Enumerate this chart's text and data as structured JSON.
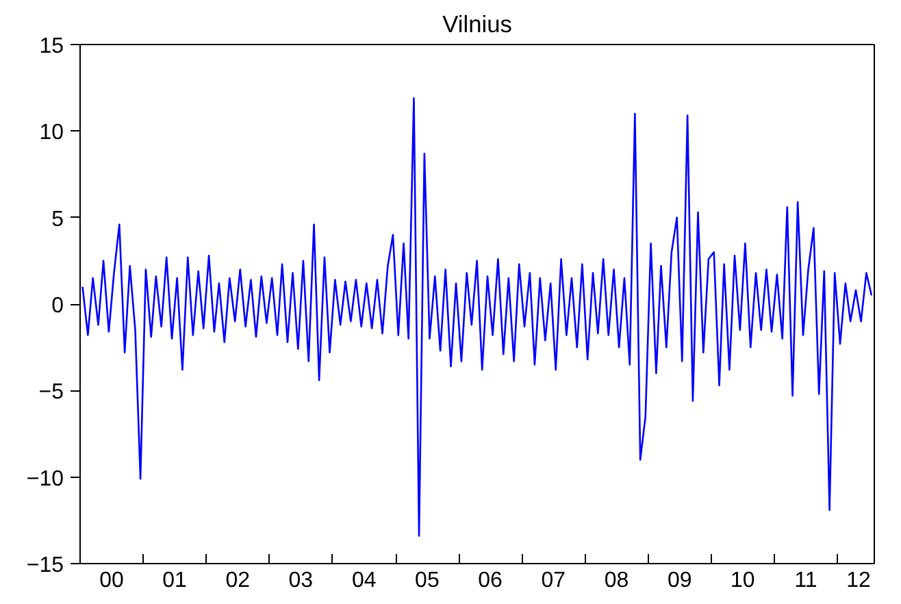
{
  "chart_data": {
    "type": "line",
    "title": "Vilnius",
    "x": [
      "2000-01",
      "2000-02",
      "2000-03",
      "2000-04",
      "2000-05",
      "2000-06",
      "2000-07",
      "2000-08",
      "2000-09",
      "2000-10",
      "2000-11",
      "2000-12",
      "2001-01",
      "2001-02",
      "2001-03",
      "2001-04",
      "2001-05",
      "2001-06",
      "2001-07",
      "2001-08",
      "2001-09",
      "2001-10",
      "2001-11",
      "2001-12",
      "2002-01",
      "2002-02",
      "2002-03",
      "2002-04",
      "2002-05",
      "2002-06",
      "2002-07",
      "2002-08",
      "2002-09",
      "2002-10",
      "2002-11",
      "2002-12",
      "2003-01",
      "2003-02",
      "2003-03",
      "2003-04",
      "2003-05",
      "2003-06",
      "2003-07",
      "2003-08",
      "2003-09",
      "2003-10",
      "2003-11",
      "2003-12",
      "2004-01",
      "2004-02",
      "2004-03",
      "2004-04",
      "2004-05",
      "2004-06",
      "2004-07",
      "2004-08",
      "2004-09",
      "2004-10",
      "2004-11",
      "2004-12",
      "2005-01",
      "2005-02",
      "2005-03",
      "2005-04",
      "2005-05",
      "2005-06",
      "2005-07",
      "2005-08",
      "2005-09",
      "2005-10",
      "2005-11",
      "2005-12",
      "2006-01",
      "2006-02",
      "2006-03",
      "2006-04",
      "2006-05",
      "2006-06",
      "2006-07",
      "2006-08",
      "2006-09",
      "2006-10",
      "2006-11",
      "2006-12",
      "2007-01",
      "2007-02",
      "2007-03",
      "2007-04",
      "2007-05",
      "2007-06",
      "2007-07",
      "2007-08",
      "2007-09",
      "2007-10",
      "2007-11",
      "2007-12",
      "2008-01",
      "2008-02",
      "2008-03",
      "2008-04",
      "2008-05",
      "2008-06",
      "2008-07",
      "2008-08",
      "2008-09",
      "2008-10",
      "2008-11",
      "2008-12",
      "2009-01",
      "2009-02",
      "2009-03",
      "2009-04",
      "2009-05",
      "2009-06",
      "2009-07",
      "2009-08",
      "2009-09",
      "2009-10",
      "2009-11",
      "2009-12",
      "2010-01",
      "2010-02",
      "2010-03",
      "2010-04",
      "2010-05",
      "2010-06",
      "2010-07",
      "2010-08",
      "2010-09",
      "2010-10",
      "2010-11",
      "2010-12",
      "2011-01",
      "2011-02",
      "2011-03",
      "2011-04",
      "2011-05",
      "2011-06",
      "2011-07",
      "2011-08",
      "2011-09",
      "2011-10",
      "2011-11",
      "2011-12",
      "2012-01",
      "2012-02",
      "2012-03",
      "2012-04",
      "2012-05",
      "2012-06",
      "2012-07"
    ],
    "series": [
      {
        "color": "#0000ff",
        "values": [
          1.0,
          -1.8,
          1.5,
          -1.2,
          2.5,
          -1.6,
          1.8,
          4.6,
          -2.8,
          2.2,
          -1.5,
          -10.1,
          2.0,
          -1.9,
          1.6,
          -1.3,
          2.7,
          -2.0,
          1.5,
          -3.8,
          2.7,
          -1.8,
          1.9,
          -1.4,
          2.8,
          -1.6,
          1.2,
          -2.2,
          1.5,
          -1.0,
          2.0,
          -1.3,
          1.4,
          -1.9,
          1.6,
          -1.1,
          1.5,
          -1.8,
          2.3,
          -2.2,
          1.8,
          -2.6,
          2.5,
          -3.3,
          4.6,
          -4.4,
          2.7,
          -2.8,
          1.4,
          -1.2,
          1.3,
          -1.0,
          1.4,
          -1.3,
          1.2,
          -1.4,
          1.4,
          -1.7,
          2.2,
          4.0,
          -1.8,
          3.5,
          -2.0,
          11.9,
          -13.4,
          8.7,
          -2.0,
          1.6,
          -2.7,
          2.0,
          -3.6,
          1.2,
          -3.3,
          1.8,
          -1.2,
          2.5,
          -3.8,
          1.6,
          -1.8,
          2.6,
          -2.9,
          1.5,
          -3.3,
          2.3,
          -1.3,
          1.8,
          -3.5,
          1.5,
          -2.1,
          1.2,
          -3.8,
          2.6,
          -1.8,
          1.5,
          -2.5,
          2.3,
          -3.2,
          1.8,
          -1.7,
          2.6,
          -1.8,
          2.0,
          -2.5,
          1.5,
          -3.5,
          11.0,
          -9.0,
          -6.5,
          3.5,
          -4.0,
          2.2,
          -2.5,
          3.0,
          5.0,
          -3.3,
          10.9,
          -5.6,
          5.3,
          -2.8,
          2.6,
          3.0,
          -4.7,
          2.3,
          -3.8,
          2.8,
          -1.5,
          3.5,
          -2.5,
          1.8,
          -1.5,
          2.0,
          -1.6,
          1.7,
          -2.0,
          5.6,
          -5.3,
          5.9,
          -1.8,
          2.0,
          4.4,
          -5.2,
          1.9,
          -11.9,
          1.8,
          -2.3,
          1.2,
          -1.0,
          0.8,
          -1.0,
          1.8,
          0.5
        ]
      }
    ],
    "xlim": [
      "2000-01-01",
      "2012-07-31"
    ],
    "xticks": [
      {
        "value": "2000-07-01",
        "label": "00"
      },
      {
        "value": "2001-01-01",
        "label": null
      },
      {
        "value": "2001-07-01",
        "label": "01"
      },
      {
        "value": "2002-01-01",
        "label": null
      },
      {
        "value": "2002-07-01",
        "label": "02"
      },
      {
        "value": "2003-01-01",
        "label": null
      },
      {
        "value": "2003-07-01",
        "label": "03"
      },
      {
        "value": "2004-01-01",
        "label": null
      },
      {
        "value": "2004-07-01",
        "label": "04"
      },
      {
        "value": "2005-01-01",
        "label": null
      },
      {
        "value": "2005-07-01",
        "label": "05"
      },
      {
        "value": "2006-01-01",
        "label": null
      },
      {
        "value": "2006-07-01",
        "label": "06"
      },
      {
        "value": "2007-01-01",
        "label": null
      },
      {
        "value": "2007-07-01",
        "label": "07"
      },
      {
        "value": "2008-01-01",
        "label": null
      },
      {
        "value": "2008-07-01",
        "label": "08"
      },
      {
        "value": "2009-01-01",
        "label": null
      },
      {
        "value": "2009-07-01",
        "label": "09"
      },
      {
        "value": "2010-01-01",
        "label": null
      },
      {
        "value": "2010-07-01",
        "label": "10"
      },
      {
        "value": "2011-01-01",
        "label": null
      },
      {
        "value": "2011-07-01",
        "label": "11"
      },
      {
        "value": "2012-01-01",
        "label": null
      },
      {
        "value": "2012-05-01",
        "label": "12"
      }
    ],
    "ylim": [
      -15,
      15
    ],
    "yticks": [
      -15,
      -10,
      -5,
      0,
      5,
      10,
      15
    ],
    "grid": false,
    "marker": "none",
    "line_style": "solid"
  }
}
